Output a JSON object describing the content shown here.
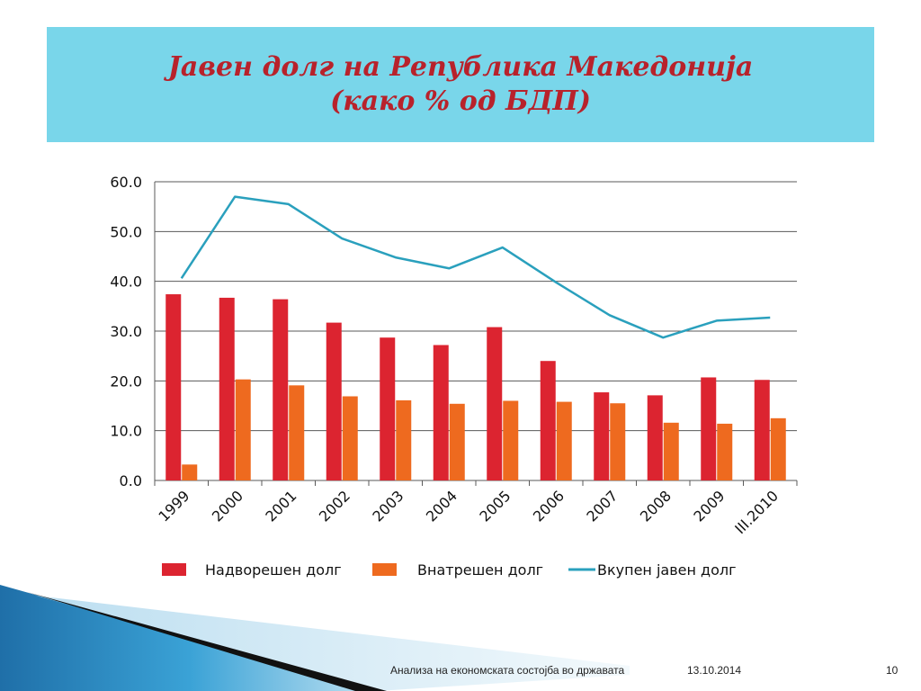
{
  "slide": {
    "title_line1": "Јавен долг на Република Македонија",
    "title_line2": "(како % од БДП)",
    "footer_left": "Анализа на економската состојба во државата",
    "footer_date": "13.10.2014",
    "footer_page": "10"
  },
  "colors": {
    "title_bg": "#79d6ea",
    "title_text": "#b8222b",
    "external_debt": "#dc2430",
    "domestic_debt": "#ee6a1f",
    "total_debt": "#2aa0bd",
    "decor_blue": "#2f8fc6"
  },
  "chart_data": {
    "type": "bar",
    "categories": [
      "1999",
      "2000",
      "2001",
      "2002",
      "2003",
      "2004",
      "2005",
      "2006",
      "2007",
      "2008",
      "2009",
      "III.2010"
    ],
    "ylim": [
      0,
      60
    ],
    "yticks": [
      "0.0",
      "10.0",
      "20.0",
      "30.0",
      "40.0",
      "50.0",
      "60.0"
    ],
    "grid": true,
    "legend_position": "bottom",
    "series": [
      {
        "name": "Надворешен долг",
        "type": "bar",
        "values": [
          37.4,
          36.7,
          36.4,
          31.7,
          28.7,
          27.2,
          30.8,
          24.0,
          17.7,
          17.1,
          20.7,
          20.2
        ]
      },
      {
        "name": "Внатрешен долг",
        "type": "bar",
        "values": [
          3.2,
          20.3,
          19.1,
          16.9,
          16.1,
          15.4,
          16.0,
          15.8,
          15.5,
          11.6,
          11.4,
          12.5
        ]
      },
      {
        "name": "Вкупен јавен долг",
        "type": "line",
        "values": [
          40.6,
          57.0,
          55.5,
          48.6,
          44.8,
          42.6,
          46.8,
          39.8,
          33.2,
          28.7,
          32.1,
          32.7
        ]
      }
    ]
  }
}
